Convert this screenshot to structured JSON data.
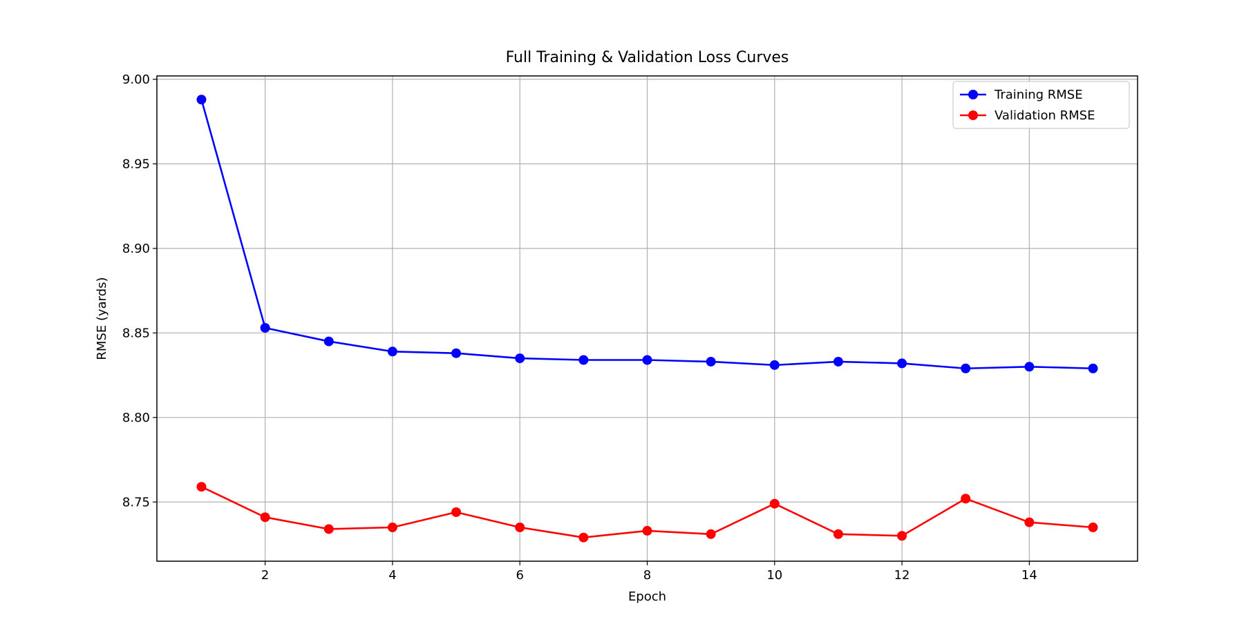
{
  "chart_data": {
    "type": "line",
    "title": "Full Training & Validation Loss Curves",
    "xlabel": "Epoch",
    "ylabel": "RMSE (yards)",
    "x": [
      1,
      2,
      3,
      4,
      5,
      6,
      7,
      8,
      9,
      10,
      11,
      12,
      13,
      14,
      15
    ],
    "xlim": [
      0.3,
      15.7
    ],
    "ylim": [
      8.715,
      9.002
    ],
    "xticks": [
      2,
      4,
      6,
      8,
      10,
      12,
      14
    ],
    "xtick_labels": [
      "2",
      "4",
      "6",
      "8",
      "10",
      "12",
      "14"
    ],
    "yticks": [
      8.75,
      8.8,
      8.85,
      8.9,
      8.95,
      9.0
    ],
    "ytick_labels": [
      "8.75",
      "8.80",
      "8.85",
      "8.90",
      "8.95",
      "9.00"
    ],
    "grid": true,
    "legend_position": "top-right",
    "series": [
      {
        "name": "Training RMSE",
        "color": "#0000ff",
        "marker": "circle",
        "values": [
          8.988,
          8.853,
          8.845,
          8.839,
          8.838,
          8.835,
          8.834,
          8.834,
          8.833,
          8.831,
          8.833,
          8.832,
          8.829,
          8.83,
          8.829
        ]
      },
      {
        "name": "Validation RMSE",
        "color": "#ff0000",
        "marker": "circle",
        "values": [
          8.759,
          8.741,
          8.734,
          8.735,
          8.744,
          8.735,
          8.729,
          8.733,
          8.731,
          8.749,
          8.731,
          8.73,
          8.752,
          8.738,
          8.735
        ]
      }
    ]
  }
}
